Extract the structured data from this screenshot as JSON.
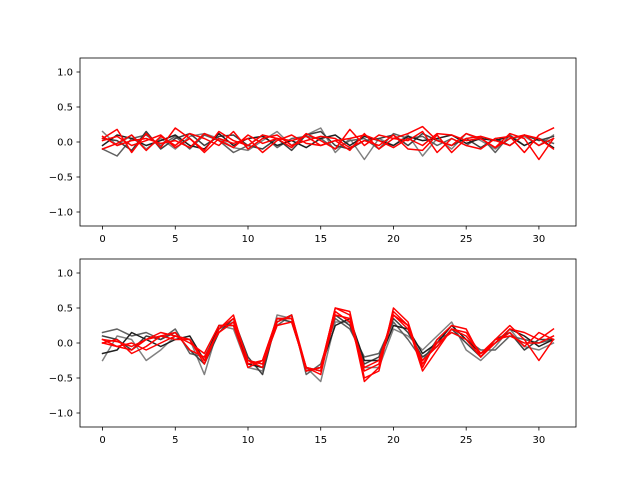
{
  "chart_data": [
    {
      "type": "line",
      "title": "",
      "xlabel": "",
      "ylabel": "",
      "xlim": [
        -1.55,
        32.55
      ],
      "ylim": [
        -1.2,
        1.2
      ],
      "xticks": [
        0,
        5,
        10,
        15,
        20,
        25,
        30
      ],
      "yticks": [
        -1.0,
        -0.5,
        0.0,
        0.5,
        1.0
      ],
      "xtick_labels": [
        "0",
        "5",
        "10",
        "15",
        "20",
        "25",
        "30"
      ],
      "ytick_labels": [
        "−1.0",
        "−0.5",
        "0.0",
        "0.5",
        "1.0"
      ],
      "grid": false,
      "x": [
        0,
        1,
        2,
        3,
        4,
        5,
        6,
        7,
        8,
        9,
        10,
        11,
        12,
        13,
        14,
        15,
        16,
        17,
        18,
        19,
        20,
        21,
        22,
        23,
        24,
        25,
        26,
        27,
        28,
        29,
        30,
        31
      ],
      "series": [
        {
          "color": "#808080",
          "values": [
            0.15,
            -0.05,
            0.1,
            -0.1,
            0.05,
            -0.1,
            0.08,
            0.12,
            0.05,
            -0.08,
            -0.12,
            0.02,
            0.15,
            -0.05,
            0.1,
            0.2,
            -0.15,
            0.05,
            -0.25,
            0.05,
            -0.05,
            0.1,
            -0.2,
            0.05,
            -0.1,
            0.12,
            0.02,
            -0.1,
            0.05,
            0.08,
            -0.05,
            0.1
          ]
        },
        {
          "color": "#606060",
          "values": [
            -0.1,
            -0.2,
            0.05,
            0.1,
            -0.05,
            0.08,
            -0.1,
            0.1,
            0.02,
            -0.15,
            -0.05,
            0.1,
            -0.08,
            0.05,
            0.08,
            0.05,
            -0.1,
            0.02,
            0.05,
            -0.1,
            0.12,
            0.05,
            0.08,
            -0.05,
            0.05,
            -0.05,
            0.08,
            -0.15,
            0.1,
            -0.05,
            0.05,
            -0.02
          ]
        },
        {
          "color": "#404040",
          "values": [
            0.05,
            0.02,
            -0.12,
            0.15,
            -0.1,
            0.05,
            0.12,
            -0.05,
            0.08,
            0.1,
            -0.05,
            -0.1,
            0.05,
            -0.12,
            0.1,
            0.15,
            -0.05,
            -0.1,
            0.02,
            0.05,
            0.1,
            -0.05,
            0.12,
            0.02,
            -0.05,
            0.05,
            -0.08,
            0.05,
            -0.05,
            0.1,
            0.02,
            0.08
          ]
        },
        {
          "color": "#202020",
          "values": [
            -0.05,
            0.1,
            0.05,
            -0.05,
            0.02,
            0.1,
            -0.05,
            -0.1,
            0.12,
            -0.05,
            0.05,
            0.08,
            -0.05,
            0.02,
            -0.08,
            0.05,
            0.1,
            -0.05,
            0.08,
            0.02,
            -0.05,
            0.08,
            0.02,
            0.05,
            0.1,
            -0.02,
            0.05,
            0.02,
            0.08,
            -0.05,
            0.05,
            -0.08
          ]
        },
        {
          "color": "#ff0000",
          "values": [
            0.05,
            0.18,
            -0.15,
            0.12,
            -0.08,
            0.2,
            0.05,
            -0.12,
            0.15,
            0.02,
            -0.05,
            0.1,
            0.05,
            -0.08,
            0.12,
            0.02,
            -0.1,
            0.18,
            -0.05,
            0.1,
            0.05,
            0.12,
            0.22,
            0.02,
            -0.05,
            0.12,
            0.05,
            -0.08,
            0.12,
            0.05,
            -0.25,
            0.05
          ]
        },
        {
          "color": "#ff0000",
          "values": [
            -0.1,
            -0.02,
            0.1,
            -0.12,
            0.08,
            -0.05,
            0.12,
            0.05,
            -0.05,
            0.15,
            -0.1,
            0.05,
            0.1,
            -0.05,
            0.02,
            0.08,
            0.05,
            -0.08,
            0.02,
            -0.05,
            0.1,
            -0.1,
            -0.12,
            0.1,
            -0.15,
            0.05,
            0.08,
            0.02,
            -0.05,
            0.1,
            0.05,
            -0.1
          ]
        },
        {
          "color": "#ff0000",
          "values": [
            0.08,
            -0.05,
            0.02,
            0.05,
            -0.02,
            0.02,
            -0.08,
            0.12,
            0.02,
            -0.08,
            0.1,
            -0.02,
            0.05,
            0.02,
            0.08,
            -0.05,
            0.02,
            -0.12,
            0.12,
            -0.1,
            0.05,
            0.02,
            0.15,
            -0.15,
            0.05,
            -0.05,
            -0.1,
            0.05,
            0.08,
            -0.15,
            0.1,
            0.2
          ]
        },
        {
          "color": "#ff0000",
          "values": [
            0.02,
            0.08,
            -0.05,
            0.02,
            0.1,
            -0.08,
            0.05,
            -0.15,
            0.05,
            -0.02,
            0.05,
            -0.15,
            0.02,
            0.1,
            -0.02,
            -0.05,
            0.02,
            0.05,
            0.1,
            0.02,
            -0.08,
            0.05,
            -0.05,
            0.12,
            0.1,
            0.02,
            0.05,
            -0.08,
            0.05,
            0.1,
            -0.05,
            0.05
          ]
        }
      ]
    },
    {
      "type": "line",
      "title": "",
      "xlabel": "",
      "ylabel": "",
      "xlim": [
        -1.55,
        32.55
      ],
      "ylim": [
        -1.2,
        1.2
      ],
      "xticks": [
        0,
        5,
        10,
        15,
        20,
        25,
        30
      ],
      "yticks": [
        -1.0,
        -0.5,
        0.0,
        0.5,
        1.0
      ],
      "xtick_labels": [
        "0",
        "5",
        "10",
        "15",
        "20",
        "25",
        "30"
      ],
      "ytick_labels": [
        "−1.0",
        "−0.5",
        "0.0",
        "0.5",
        "1.0"
      ],
      "grid": false,
      "x": [
        0,
        1,
        2,
        3,
        4,
        5,
        6,
        7,
        8,
        9,
        10,
        11,
        12,
        13,
        14,
        15,
        16,
        17,
        18,
        19,
        20,
        21,
        22,
        23,
        24,
        25,
        26,
        27,
        28,
        29,
        30,
        31
      ],
      "series": [
        {
          "color": "#808080",
          "values": [
            -0.25,
            0.1,
            0.05,
            -0.25,
            -0.1,
            0.1,
            0.05,
            -0.45,
            0.25,
            0.2,
            -0.35,
            -0.4,
            0.4,
            0.35,
            -0.35,
            -0.55,
            0.3,
            0.3,
            -0.35,
            -0.35,
            0.2,
            0.1,
            -0.1,
            0.1,
            0.3,
            -0.1,
            -0.25,
            -0.05,
            0.2,
            -0.05,
            -0.1,
            0.0
          ]
        },
        {
          "color": "#606060",
          "values": [
            0.15,
            0.2,
            0.1,
            0.15,
            0.05,
            0.2,
            -0.15,
            -0.2,
            0.2,
            0.3,
            -0.25,
            -0.3,
            0.25,
            0.4,
            -0.45,
            -0.3,
            0.35,
            0.2,
            -0.2,
            -0.15,
            0.3,
            0.05,
            -0.25,
            0.05,
            0.15,
            0.05,
            -0.1,
            -0.1,
            0.1,
            0.05,
            0.0,
            0.05
          ]
        },
        {
          "color": "#404040",
          "values": [
            0.1,
            0.05,
            -0.1,
            0.1,
            0.05,
            0.15,
            -0.1,
            -0.3,
            0.15,
            0.35,
            -0.2,
            -0.45,
            0.35,
            0.3,
            -0.35,
            -0.4,
            0.4,
            0.25,
            -0.3,
            -0.2,
            0.35,
            0.15,
            -0.2,
            -0.05,
            0.2,
            0.0,
            -0.2,
            0.05,
            0.15,
            -0.1,
            0.05,
            0.05
          ]
        },
        {
          "color": "#202020",
          "values": [
            -0.15,
            -0.1,
            0.15,
            0.05,
            -0.05,
            0.05,
            0.1,
            -0.25,
            0.25,
            0.25,
            -0.3,
            -0.35,
            0.3,
            0.4,
            -0.4,
            -0.35,
            0.25,
            0.35,
            -0.25,
            -0.25,
            0.25,
            0.2,
            -0.15,
            0.0,
            0.25,
            0.05,
            -0.15,
            0.0,
            0.2,
            0.1,
            -0.05,
            0.05
          ]
        },
        {
          "color": "#ff0000",
          "values": [
            0.05,
            0.02,
            -0.05,
            0.05,
            0.15,
            0.1,
            0.05,
            -0.25,
            0.2,
            0.4,
            -0.3,
            -0.25,
            0.35,
            0.35,
            -0.4,
            -0.35,
            0.5,
            0.45,
            -0.5,
            -0.4,
            0.5,
            0.3,
            -0.35,
            0.05,
            0.25,
            0.2,
            -0.2,
            0.05,
            0.25,
            0.05,
            -0.25,
            0.05
          ]
        },
        {
          "color": "#ff0000",
          "values": [
            0.05,
            -0.05,
            -0.1,
            0.05,
            0.1,
            0.15,
            -0.1,
            -0.2,
            0.15,
            0.3,
            -0.25,
            -0.3,
            0.25,
            0.3,
            -0.35,
            -0.4,
            0.4,
            0.35,
            -0.35,
            -0.25,
            0.4,
            0.2,
            -0.25,
            -0.05,
            0.2,
            0.1,
            -0.15,
            0.0,
            0.15,
            -0.05,
            0.15,
            0.05
          ]
        },
        {
          "color": "#ff0000",
          "values": [
            0.0,
            0.05,
            -0.15,
            -0.05,
            0.1,
            0.05,
            0.05,
            -0.3,
            0.2,
            0.35,
            -0.25,
            -0.35,
            0.3,
            0.4,
            -0.35,
            -0.45,
            0.45,
            0.3,
            -0.4,
            -0.3,
            0.45,
            0.25,
            -0.3,
            0.0,
            0.15,
            0.05,
            -0.2,
            0.0,
            0.2,
            0.15,
            0.05,
            0.2
          ]
        },
        {
          "color": "#ff0000",
          "values": [
            0.0,
            -0.05,
            0.0,
            -0.1,
            0.0,
            0.1,
            0.0,
            -0.15,
            0.25,
            0.25,
            -0.35,
            -0.25,
            0.35,
            0.35,
            -0.4,
            -0.35,
            0.5,
            0.4,
            -0.55,
            -0.35,
            0.4,
            0.25,
            -0.4,
            -0.1,
            0.2,
            0.15,
            -0.15,
            0.05,
            0.1,
            0.0,
            0.0,
            0.1
          ]
        }
      ]
    }
  ]
}
